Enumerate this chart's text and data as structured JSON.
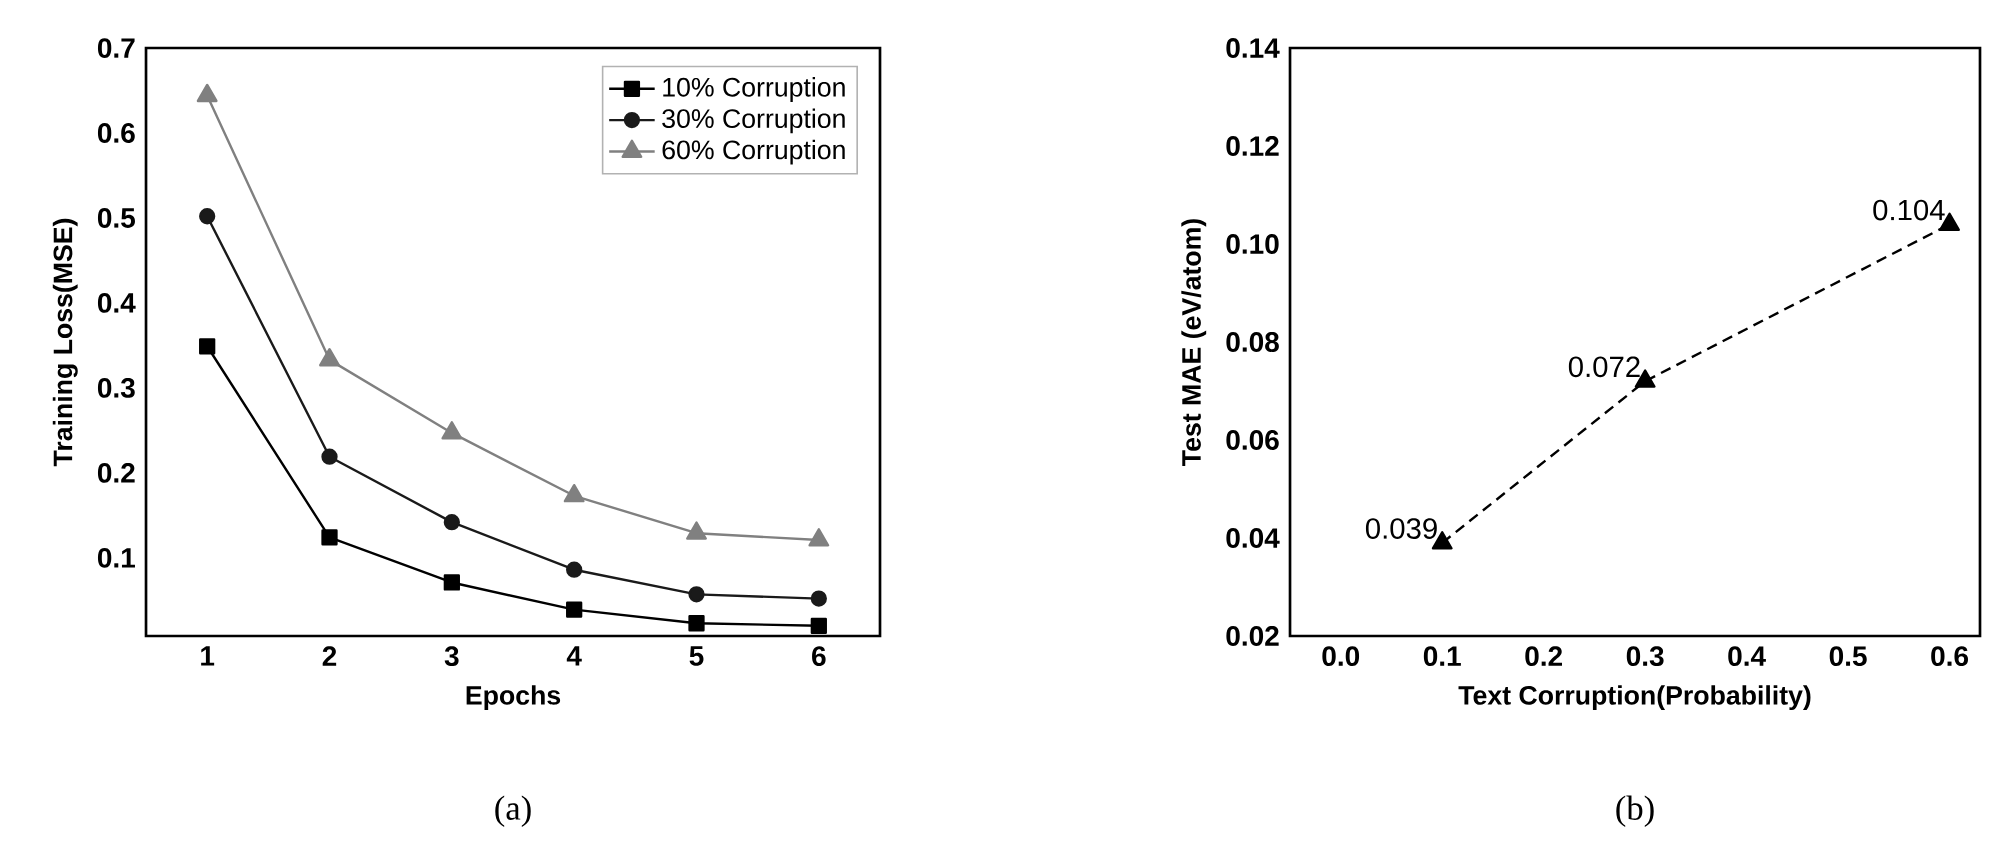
{
  "chart_data": [
    {
      "type": "line",
      "xlabel": "Epochs",
      "ylabel": "Training Loss(MSE)",
      "x": [
        1,
        2,
        3,
        4,
        5,
        6
      ],
      "xlim": [
        0.5,
        6.5
      ],
      "xticks": [
        1,
        2,
        3,
        4,
        5,
        6
      ],
      "ylim": [
        0.008,
        0.7
      ],
      "yticks": [
        0.1,
        0.2,
        0.3,
        0.4,
        0.5,
        0.6,
        0.7
      ],
      "legend": "top right",
      "grid": false,
      "line_style": "solid",
      "series": [
        {
          "name": "10% Corruption",
          "color": "#000000",
          "marker": "square",
          "values": [
            0.349,
            0.124,
            0.071,
            0.039,
            0.023,
            0.02
          ]
        },
        {
          "name": "30% Corruption",
          "color": "#1a1a1a",
          "marker": "circle",
          "values": [
            0.502,
            0.219,
            0.142,
            0.086,
            0.057,
            0.052
          ]
        },
        {
          "name": "60% Corruption",
          "color": "#808080",
          "marker": "triangle",
          "values": [
            0.644,
            0.333,
            0.247,
            0.173,
            0.129,
            0.121
          ]
        }
      ],
      "annotations": [
        "(a)"
      ]
    },
    {
      "type": "line",
      "xlabel": "Text Corruption(Probability)",
      "ylabel": "Test MAE (eV/atom)",
      "x": [
        0.1,
        0.3,
        0.6
      ],
      "xlim": [
        -0.05,
        0.63
      ],
      "xticks": [
        {
          "value": 0,
          "label": "0.0"
        },
        0.1,
        0.2,
        0.3,
        0.4,
        0.5,
        0.6
      ],
      "ylim": [
        0.02,
        0.14
      ],
      "yticks": [
        0.02,
        0.04,
        0.06,
        0.08,
        {
          "value": 0.1,
          "label": "0.10"
        },
        0.12,
        0.14
      ],
      "legend": false,
      "grid": false,
      "line_style": "dashed",
      "marker": "triangle",
      "series": [
        {
          "color": "#000000",
          "values": [
            0.039,
            0.072,
            0.104
          ],
          "value_labels": [
            "0.039",
            "0.072",
            "0.104"
          ]
        }
      ],
      "annotations": [
        "(b)"
      ]
    }
  ]
}
